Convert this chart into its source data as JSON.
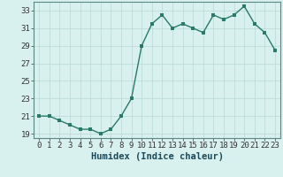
{
  "x": [
    0,
    1,
    2,
    3,
    4,
    5,
    6,
    7,
    8,
    9,
    10,
    11,
    12,
    13,
    14,
    15,
    16,
    17,
    18,
    19,
    20,
    21,
    22,
    23
  ],
  "y": [
    21,
    21,
    20.5,
    20,
    19.5,
    19.5,
    19,
    19.5,
    21,
    23,
    29,
    31.5,
    32.5,
    31,
    31.5,
    31,
    30.5,
    32.5,
    32,
    32.5,
    33.5,
    31.5,
    30.5,
    28.5
  ],
  "line_color": "#2a7a6a",
  "marker_color": "#2a7a6a",
  "bg_color": "#d8f0ee",
  "grid_color": "#b8d8d4",
  "xlabel": "Humidex (Indice chaleur)",
  "ylim": [
    18.5,
    34.0
  ],
  "xlim": [
    -0.5,
    23.5
  ],
  "yticks": [
    19,
    21,
    23,
    25,
    27,
    29,
    31,
    33
  ],
  "xtick_labels": [
    "0",
    "1",
    "2",
    "3",
    "4",
    "5",
    "6",
    "7",
    "8",
    "9",
    "10",
    "11",
    "12",
    "13",
    "14",
    "15",
    "16",
    "17",
    "18",
    "19",
    "20",
    "21",
    "22",
    "23"
  ],
  "linewidth": 1.0,
  "markersize": 2.5,
  "tick_fontsize": 6.5,
  "xlabel_fontsize": 7.5
}
